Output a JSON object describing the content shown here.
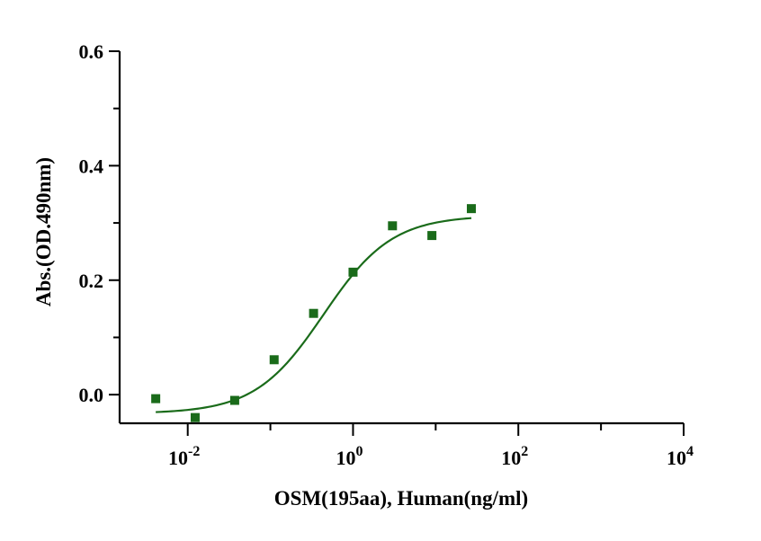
{
  "chart_data": {
    "type": "scatter",
    "xlabel": "OSM(195aa), Human(ng/ml)",
    "ylabel": "Abs.(OD.490nm)",
    "x_scale": "log",
    "xlim": [
      0.0015,
      10000
    ],
    "ylim": [
      -0.05,
      0.6
    ],
    "y_ticks": [
      {
        "value": 0.0,
        "label": "0.0"
      },
      {
        "value": 0.2,
        "label": "0.2"
      },
      {
        "value": 0.4,
        "label": "0.4"
      },
      {
        "value": 0.6,
        "label": "0.6"
      }
    ],
    "x_ticks": [
      {
        "value": 0.01,
        "base": "10",
        "exp": "-2"
      },
      {
        "value": 1,
        "base": "10",
        "exp": "0"
      },
      {
        "value": 100,
        "base": "10",
        "exp": "2"
      },
      {
        "value": 10000,
        "base": "10",
        "exp": "4"
      }
    ],
    "marker_color": "#1a6b1a",
    "curve_color": "#1a6b1a",
    "points": [
      {
        "x": 0.0041,
        "y": -0.007
      },
      {
        "x": 0.0123,
        "y": -0.04
      },
      {
        "x": 0.037,
        "y": -0.01
      },
      {
        "x": 0.111,
        "y": 0.061
      },
      {
        "x": 0.333,
        "y": 0.142
      },
      {
        "x": 1.0,
        "y": 0.214
      },
      {
        "x": 3.0,
        "y": 0.295
      },
      {
        "x": 9.0,
        "y": 0.278
      },
      {
        "x": 27.0,
        "y": 0.325
      }
    ],
    "fit": {
      "model": "4PL",
      "bottom": -0.033,
      "top": 0.313,
      "ec50": 0.44,
      "hill": 1.05,
      "x_from": 0.0041,
      "x_to": 27.0
    }
  }
}
